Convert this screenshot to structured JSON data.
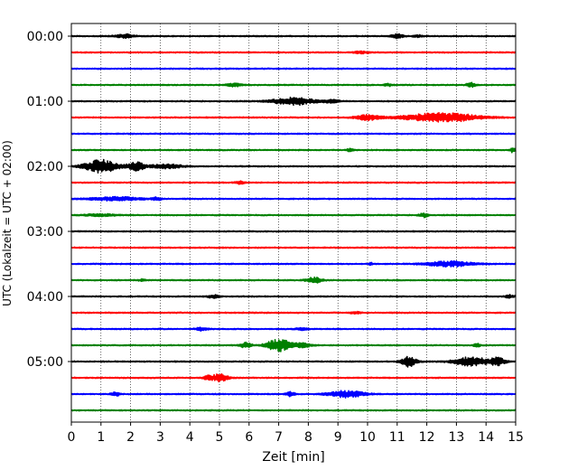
{
  "chart_data": {
    "type": "line",
    "title": "",
    "xlabel": "Zeit  [min]",
    "ylabel": "UTC (Lokalzeit = UTC + 02:00)",
    "xlim": [
      0,
      15
    ],
    "xticks": [
      0,
      1,
      2,
      3,
      4,
      5,
      6,
      7,
      8,
      9,
      10,
      11,
      12,
      13,
      14,
      15
    ],
    "xtick_labels": [
      "0",
      "1",
      "2",
      "3",
      "4",
      "5",
      "6",
      "7",
      "8",
      "9",
      "10",
      "11",
      "12",
      "13",
      "14",
      "15"
    ],
    "y_ticks": [
      "00:00",
      "01:00",
      "02:00",
      "03:00",
      "04:00",
      "05:00"
    ],
    "grid": "vertical dotted at each minute",
    "legend": "none",
    "trace_colors": [
      "#000000",
      "#ff0000",
      "#0000ff",
      "#008000"
    ],
    "traces": [
      {
        "start": "00:00",
        "color": "#000000",
        "bursts": [
          [
            1.8,
            0.6,
            0.25
          ],
          [
            11.0,
            0.4,
            0.3
          ],
          [
            11.7,
            0.3,
            0.15
          ]
        ]
      },
      {
        "start": "00:15",
        "color": "#ff0000",
        "bursts": [
          [
            9.8,
            0.5,
            0.15
          ]
        ]
      },
      {
        "start": "00:30",
        "color": "#0000ff",
        "bursts": []
      },
      {
        "start": "00:45",
        "color": "#008000",
        "bursts": [
          [
            5.5,
            0.5,
            0.2
          ],
          [
            10.7,
            0.3,
            0.15
          ],
          [
            13.5,
            0.3,
            0.3
          ]
        ]
      },
      {
        "start": "01:00",
        "color": "#000000",
        "bursts": [
          [
            7.5,
            1.4,
            0.5
          ],
          [
            8.8,
            0.5,
            0.2
          ]
        ]
      },
      {
        "start": "01:15",
        "color": "#ff0000",
        "bursts": [
          [
            10.0,
            0.8,
            0.35
          ],
          [
            12.5,
            2.5,
            0.6
          ]
        ]
      },
      {
        "start": "01:30",
        "color": "#0000ff",
        "bursts": []
      },
      {
        "start": "01:45",
        "color": "#008000",
        "bursts": [
          [
            9.4,
            0.2,
            0.2
          ],
          [
            14.9,
            0.2,
            0.3
          ]
        ]
      },
      {
        "start": "02:00",
        "color": "#000000",
        "bursts": [
          [
            1.0,
            1.1,
            0.9
          ],
          [
            2.2,
            0.6,
            0.6
          ],
          [
            3.2,
            1.0,
            0.3
          ]
        ]
      },
      {
        "start": "02:15",
        "color": "#ff0000",
        "bursts": [
          [
            5.7,
            0.3,
            0.2
          ]
        ]
      },
      {
        "start": "02:30",
        "color": "#0000ff",
        "bursts": [
          [
            1.5,
            1.8,
            0.25
          ],
          [
            2.9,
            0.3,
            0.2
          ]
        ]
      },
      {
        "start": "02:45",
        "color": "#008000",
        "bursts": [
          [
            1.0,
            1.0,
            0.15
          ],
          [
            11.9,
            0.3,
            0.3
          ]
        ]
      },
      {
        "start": "03:00",
        "color": "#000000",
        "bursts": []
      },
      {
        "start": "03:15",
        "color": "#ff0000",
        "bursts": []
      },
      {
        "start": "03:30",
        "color": "#0000ff",
        "bursts": [
          [
            10.1,
            0.1,
            0.25
          ],
          [
            12.8,
            1.6,
            0.35
          ]
        ]
      },
      {
        "start": "03:45",
        "color": "#008000",
        "bursts": [
          [
            8.2,
            0.5,
            0.4
          ],
          [
            2.4,
            0.2,
            0.15
          ]
        ]
      },
      {
        "start": "04:00",
        "color": "#000000",
        "bursts": [
          [
            4.8,
            0.4,
            0.2
          ],
          [
            14.8,
            0.3,
            0.2
          ]
        ]
      },
      {
        "start": "04:15",
        "color": "#ff0000",
        "bursts": [
          [
            9.6,
            0.3,
            0.15
          ]
        ]
      },
      {
        "start": "04:30",
        "color": "#0000ff",
        "bursts": [
          [
            4.4,
            0.4,
            0.2
          ],
          [
            7.8,
            0.4,
            0.15
          ]
        ]
      },
      {
        "start": "04:45",
        "color": "#008000",
        "bursts": [
          [
            5.9,
            0.4,
            0.35
          ],
          [
            7.0,
            0.8,
            0.85
          ],
          [
            7.8,
            0.6,
            0.3
          ],
          [
            13.7,
            0.2,
            0.3
          ]
        ]
      },
      {
        "start": "05:00",
        "color": "#000000",
        "bursts": [
          [
            11.4,
            0.5,
            0.7
          ],
          [
            13.5,
            1.2,
            0.6
          ],
          [
            14.4,
            0.5,
            0.5
          ]
        ]
      },
      {
        "start": "05:15",
        "color": "#ff0000",
        "bursts": [
          [
            5.0,
            0.6,
            0.5
          ],
          [
            4.6,
            0.3,
            0.2
          ]
        ]
      },
      {
        "start": "05:30",
        "color": "#0000ff",
        "bursts": [
          [
            1.5,
            0.3,
            0.3
          ],
          [
            7.4,
            0.3,
            0.3
          ],
          [
            9.3,
            1.2,
            0.45
          ]
        ]
      },
      {
        "start": "05:45",
        "color": "#008000",
        "bursts": []
      }
    ]
  }
}
